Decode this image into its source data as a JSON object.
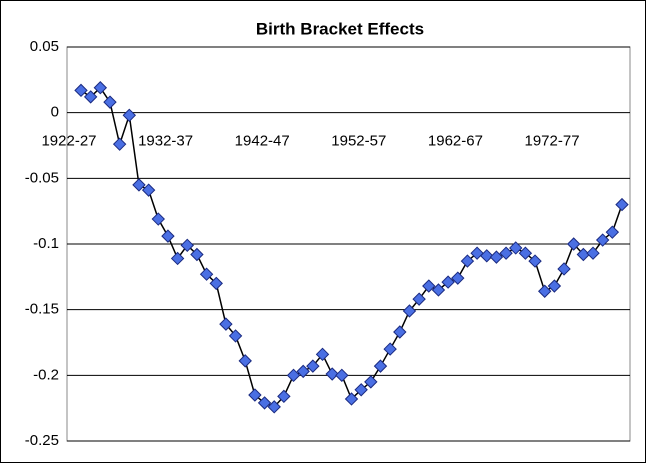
{
  "chart_data": {
    "type": "line",
    "title": "Birth Bracket Effects",
    "categories": [
      "1922-27",
      null,
      null,
      null,
      null,
      null,
      null,
      null,
      null,
      null,
      "1932-37",
      null,
      null,
      null,
      null,
      null,
      null,
      null,
      null,
      null,
      "1942-47",
      null,
      null,
      null,
      null,
      null,
      null,
      null,
      null,
      null,
      "1952-57",
      null,
      null,
      null,
      null,
      null,
      null,
      null,
      null,
      null,
      "1962-67",
      null,
      null,
      null,
      null,
      null,
      null,
      null,
      null,
      null,
      "1972-77",
      null,
      null,
      null,
      null,
      null,
      null
    ],
    "values": [
      0.017,
      0.012,
      0.019,
      0.008,
      -0.024,
      -0.002,
      -0.055,
      -0.059,
      -0.081,
      -0.094,
      -0.111,
      -0.101,
      -0.108,
      -0.123,
      -0.13,
      -0.161,
      -0.17,
      -0.189,
      -0.215,
      -0.221,
      -0.224,
      -0.216,
      -0.2,
      -0.197,
      -0.193,
      -0.184,
      -0.199,
      -0.2,
      -0.218,
      -0.211,
      -0.205,
      -0.193,
      -0.18,
      -0.167,
      -0.151,
      -0.142,
      -0.132,
      -0.135,
      -0.129,
      -0.126,
      -0.113,
      -0.107,
      -0.109,
      -0.11,
      -0.107,
      -0.103,
      -0.107,
      -0.113,
      -0.136,
      -0.132,
      -0.119,
      -0.1,
      -0.108,
      -0.107,
      -0.097,
      -0.091,
      -0.07
    ],
    "color": "#4a6fe3",
    "line_color": "#000000",
    "ylim": [
      -0.25,
      0.05
    ],
    "yticks": [
      0.05,
      0,
      -0.05,
      -0.1,
      -0.15,
      -0.2,
      -0.25
    ],
    "grid": true
  }
}
